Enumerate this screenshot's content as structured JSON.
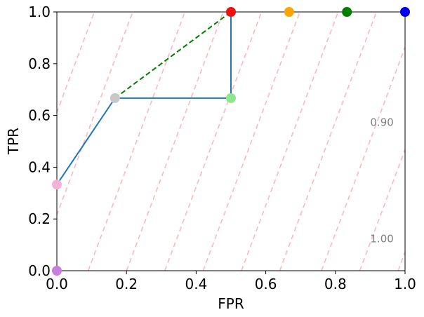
{
  "chart_data": {
    "type": "line",
    "xlabel": "FPR",
    "ylabel": "TPR",
    "xlim": [
      0,
      1
    ],
    "ylim": [
      0,
      1
    ],
    "xticks": [
      "0.0",
      "0.2",
      "0.4",
      "0.6",
      "0.8",
      "1.0"
    ],
    "yticks": [
      "0.0",
      "0.2",
      "0.4",
      "0.6",
      "0.8",
      "1.0"
    ],
    "grid": false,
    "legend": "none",
    "iso_lines": {
      "color": "#ffb6c1",
      "style": "dashed",
      "slope": 3.6,
      "x_intercepts_at_tpr0": [
        -0.83,
        -0.72,
        -0.61,
        -0.5,
        -0.39,
        -0.28,
        -0.17,
        -0.06,
        0.09,
        0.2,
        0.31,
        0.42,
        0.53,
        0.64,
        0.76,
        0.87,
        0.98
      ],
      "labels": [
        {
          "text": "0.90",
          "x": 0.9,
          "y": 0.56
        },
        {
          "text": "1.00",
          "x": 0.9,
          "y": 0.11
        }
      ]
    },
    "series": [
      {
        "style": "solid",
        "color": "#1f77b4",
        "x": [
          0.0,
          0.167,
          0.5,
          0.5
        ],
        "y": [
          0.333,
          0.667,
          0.667,
          1.0
        ]
      },
      {
        "style": "dashed",
        "color": "#008000",
        "x": [
          0.167,
          0.5
        ],
        "y": [
          0.667,
          1.0
        ]
      }
    ],
    "points": [
      {
        "x": 0.0,
        "y": 0.0,
        "color": "#c77ee0"
      },
      {
        "x": 0.0,
        "y": 0.333,
        "color": "#f5b2d9"
      },
      {
        "x": 0.167,
        "y": 0.667,
        "color": "#c8c8c8"
      },
      {
        "x": 0.5,
        "y": 0.667,
        "color": "#8ee68e"
      },
      {
        "x": 0.5,
        "y": 1.0,
        "color": "#ee1111"
      },
      {
        "x": 0.667,
        "y": 1.0,
        "color": "#ffa500"
      },
      {
        "x": 0.833,
        "y": 1.0,
        "color": "#008000"
      },
      {
        "x": 1.0,
        "y": 1.0,
        "color": "#0000ee"
      }
    ]
  }
}
